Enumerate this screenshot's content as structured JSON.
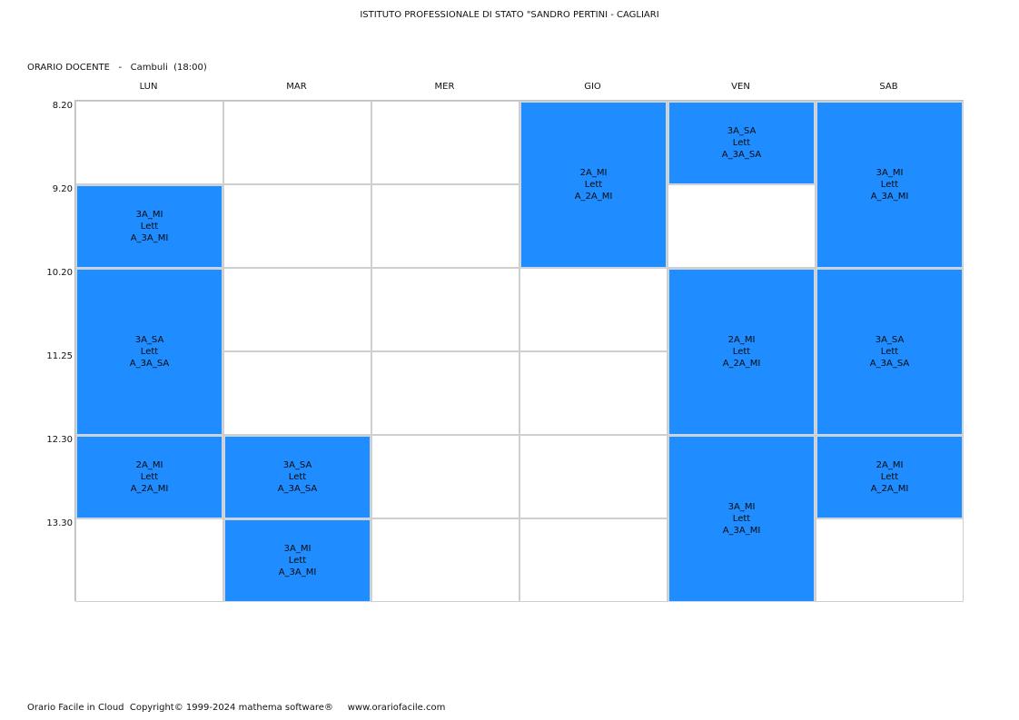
{
  "header": {
    "school": "ISTITUTO PROFESSIONALE DI STATO \"SANDRO PERTINI - CAGLIARI",
    "teacher_line": "ORARIO DOCENTE   -   Cambuli  (18:00)"
  },
  "days": [
    "LUN",
    "MAR",
    "MER",
    "GIO",
    "VEN",
    "SAB"
  ],
  "times": [
    "8.20",
    "9.20",
    "10.20",
    "11.25",
    "12.30",
    "13.30"
  ],
  "lessons": [
    {
      "day": 0,
      "start": 1,
      "span": 1,
      "class": "3A_MI",
      "subject": "Lett",
      "group": "A_3A_MI"
    },
    {
      "day": 0,
      "start": 2,
      "span": 2,
      "class": "3A_SA",
      "subject": "Lett",
      "group": "A_3A_SA"
    },
    {
      "day": 0,
      "start": 4,
      "span": 1,
      "class": "2A_MI",
      "subject": "Lett",
      "group": "A_2A_MI"
    },
    {
      "day": 1,
      "start": 4,
      "span": 1,
      "class": "3A_SA",
      "subject": "Lett",
      "group": "A_3A_SA"
    },
    {
      "day": 1,
      "start": 5,
      "span": 1,
      "class": "3A_MI",
      "subject": "Lett",
      "group": "A_3A_MI"
    },
    {
      "day": 3,
      "start": 0,
      "span": 2,
      "class": "2A_MI",
      "subject": "Lett",
      "group": "A_2A_MI"
    },
    {
      "day": 4,
      "start": 0,
      "span": 1,
      "class": "3A_SA",
      "subject": "Lett",
      "group": "A_3A_SA"
    },
    {
      "day": 4,
      "start": 2,
      "span": 2,
      "class": "2A_MI",
      "subject": "Lett",
      "group": "A_2A_MI"
    },
    {
      "day": 4,
      "start": 4,
      "span": 2,
      "class": "3A_MI",
      "subject": "Lett",
      "group": "A_3A_MI"
    },
    {
      "day": 5,
      "start": 0,
      "span": 2,
      "class": "3A_MI",
      "subject": "Lett",
      "group": "A_3A_MI"
    },
    {
      "day": 5,
      "start": 2,
      "span": 2,
      "class": "3A_SA",
      "subject": "Lett",
      "group": "A_3A_SA"
    },
    {
      "day": 5,
      "start": 4,
      "span": 1,
      "class": "2A_MI",
      "subject": "Lett",
      "group": "A_2A_MI"
    }
  ],
  "footer": "Orario Facile in Cloud  Copyright© 1999-2024 mathema software®     www.orariofacile.com",
  "colors": {
    "lesson_bg": "#1f8cff",
    "grid_border": "#bdbdbd"
  }
}
